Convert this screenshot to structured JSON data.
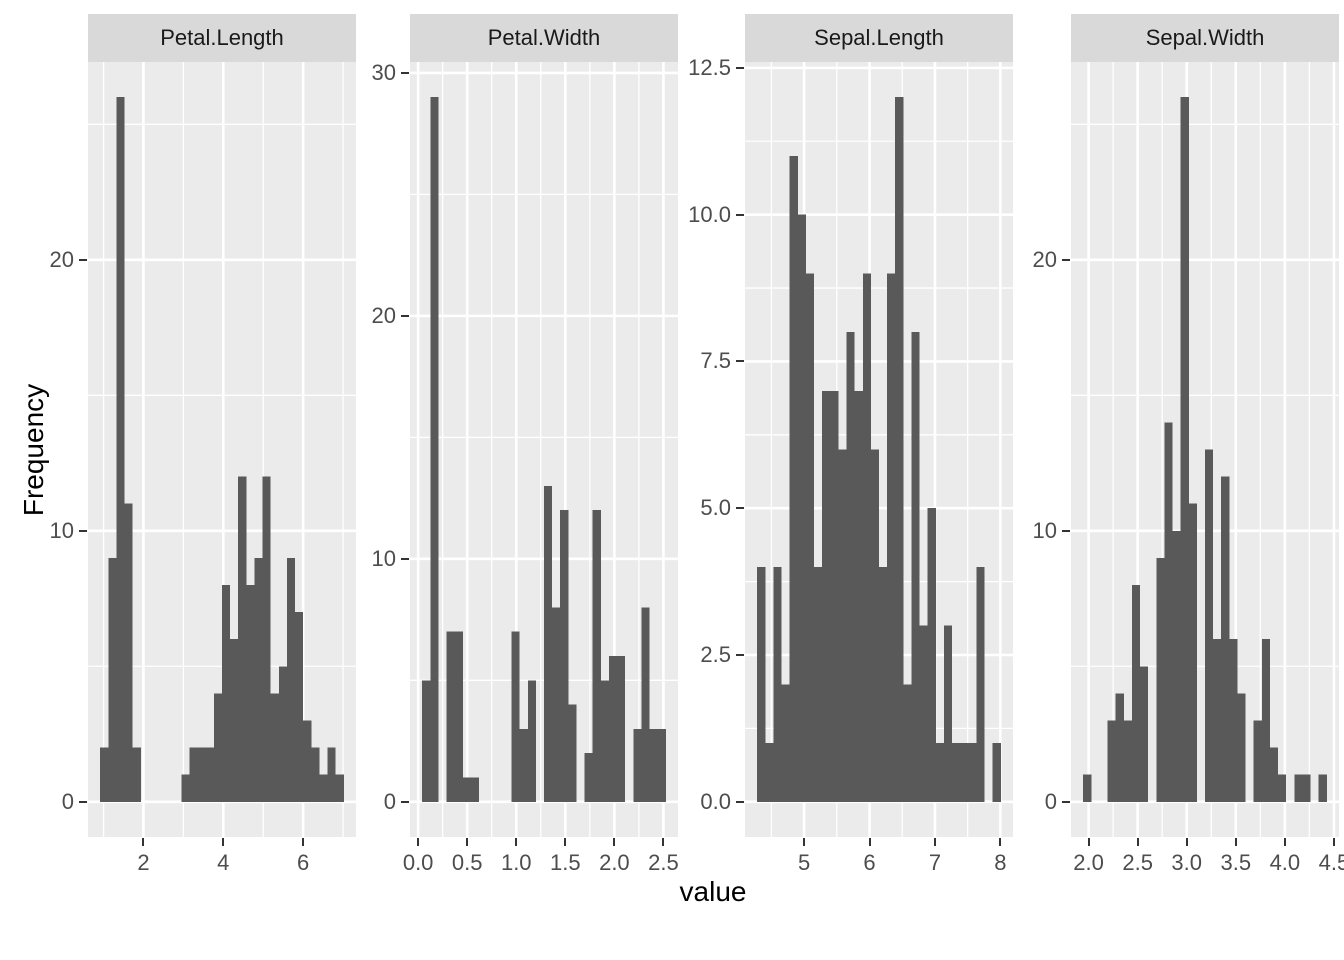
{
  "chart_data": {
    "type": "bar",
    "subtype": "faceted-histogram",
    "title": "",
    "xlabel": "value",
    "ylabel": "Frequency",
    "legend": "none",
    "grid": "on",
    "facets": [
      {
        "label": "Petal.Length",
        "bin_start": 0.9155,
        "binwidth": 0.20345,
        "counts": [
          2,
          9,
          26,
          11,
          2,
          0,
          0,
          0,
          0,
          0,
          1,
          2,
          2,
          2,
          4,
          8,
          6,
          12,
          8,
          9,
          12,
          4,
          5,
          9,
          7,
          3,
          2,
          1,
          2,
          1
        ],
        "x_domain": [
          0.61,
          7.3245
        ],
        "y_domain": [
          -1.3,
          27.3
        ],
        "x_ticks": {
          "values": [
            2,
            4,
            6
          ],
          "labels": [
            "2",
            "4",
            "6"
          ]
        },
        "y_ticks": {
          "values": [
            0,
            10,
            20
          ],
          "labels": [
            "0",
            "10",
            "20"
          ]
        },
        "x_minor": [
          1,
          3,
          5,
          7
        ],
        "y_minor": [
          5,
          15,
          25
        ]
      },
      {
        "label": "Petal.Width",
        "bin_start": 0.04138,
        "binwidth": 0.08276,
        "counts": [
          5,
          29,
          0,
          7,
          7,
          1,
          1,
          0,
          0,
          0,
          0,
          7,
          3,
          5,
          0,
          13,
          8,
          12,
          4,
          0,
          2,
          12,
          5,
          6,
          6,
          0,
          3,
          8,
          3,
          3
        ],
        "x_domain": [
          -0.0828,
          2.6483
        ],
        "y_domain": [
          -1.45,
          30.45
        ],
        "x_ticks": {
          "values": [
            0,
            0.5,
            1,
            1.5,
            2,
            2.5
          ],
          "labels": [
            "0.0",
            "0.5",
            "1.0",
            "1.5",
            "2.0",
            "2.5"
          ]
        },
        "y_ticks": {
          "values": [
            0,
            10,
            20,
            30
          ],
          "labels": [
            "0",
            "10",
            "20",
            "30"
          ]
        },
        "x_minor": [
          0.25,
          0.75,
          1.25,
          1.75,
          2.25
        ],
        "y_minor": [
          5,
          15,
          25
        ]
      },
      {
        "label": "Sepal.Length",
        "bin_start": 4.28276,
        "binwidth": 0.12414,
        "counts": [
          4,
          1,
          4,
          2,
          11,
          10,
          9,
          4,
          7,
          7,
          6,
          8,
          7,
          9,
          6,
          4,
          9,
          12,
          2,
          8,
          3,
          5,
          1,
          3,
          1,
          1,
          1,
          4,
          0,
          1
        ],
        "x_domain": [
          4.0966,
          8.1931
        ],
        "y_domain": [
          -0.6,
          12.6
        ],
        "x_ticks": {
          "values": [
            5,
            6,
            7,
            8
          ],
          "labels": [
            "5",
            "6",
            "7",
            "8"
          ]
        },
        "y_ticks": {
          "values": [
            0,
            2.5,
            5,
            7.5,
            10,
            12.5
          ],
          "labels": [
            "0.0",
            "2.5",
            "5.0",
            "7.5",
            "10.0",
            "12.5"
          ]
        },
        "x_minor": [
          4.5,
          5.5,
          6.5,
          7.5
        ],
        "y_minor": [
          1.25,
          3.75,
          6.25,
          8.75,
          11.25
        ]
      },
      {
        "label": "Sepal.Width",
        "bin_start": 1.94483,
        "binwidth": 0.08276,
        "counts": [
          1,
          0,
          0,
          3,
          4,
          3,
          8,
          5,
          0,
          9,
          14,
          10,
          26,
          11,
          0,
          13,
          6,
          12,
          6,
          4,
          0,
          3,
          6,
          2,
          1,
          0,
          1,
          1,
          0,
          1
        ],
        "x_domain": [
          1.8207,
          4.5517
        ],
        "y_domain": [
          -1.3,
          27.3
        ],
        "x_ticks": {
          "values": [
            2,
            2.5,
            3,
            3.5,
            4,
            4.5
          ],
          "labels": [
            "2.0",
            "2.5",
            "3.0",
            "3.5",
            "4.0",
            "4.5"
          ]
        },
        "y_ticks": {
          "values": [
            0,
            10,
            20
          ],
          "labels": [
            "0",
            "10",
            "20"
          ]
        },
        "x_minor": [
          2.25,
          2.75,
          3.25,
          3.75,
          4.25
        ],
        "y_minor": [
          5,
          15,
          25
        ]
      }
    ],
    "colors": {
      "bar": "#595959",
      "panel_bg": "#EBEBEB",
      "strip_bg": "#D9D9D9",
      "strip_text": "#1A1A1A",
      "grid": "#FFFFFF",
      "tick_text": "#4D4D4D",
      "tick_mark": "#333333",
      "title_text": "#000000",
      "background": "#FFFFFF"
    }
  }
}
